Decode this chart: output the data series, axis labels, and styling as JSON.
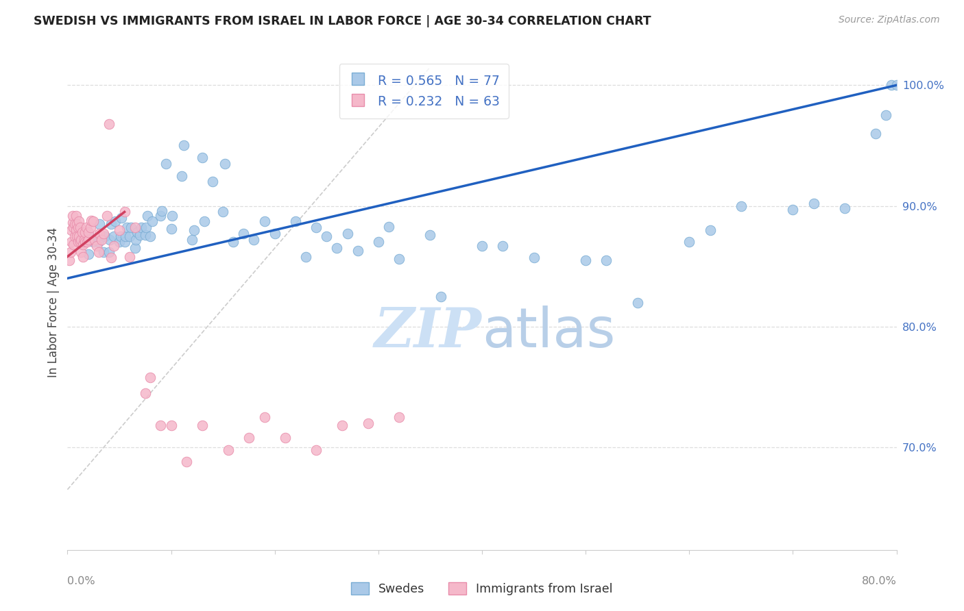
{
  "title": "SWEDISH VS IMMIGRANTS FROM ISRAEL IN LABOR FORCE | AGE 30-34 CORRELATION CHART",
  "source": "Source: ZipAtlas.com",
  "ylabel": "In Labor Force | Age 30-34",
  "ytick_labels": [
    "100.0%",
    "90.0%",
    "80.0%",
    "70.0%"
  ],
  "ytick_values": [
    1.0,
    0.9,
    0.8,
    0.7
  ],
  "xmin": 0.0,
  "xmax": 0.8,
  "ymin": 0.615,
  "ymax": 1.025,
  "blue_R": 0.565,
  "blue_N": 77,
  "pink_R": 0.232,
  "pink_N": 63,
  "blue_color": "#aac9e8",
  "blue_edge": "#7aadd4",
  "pink_color": "#f5b8ca",
  "pink_edge": "#e88caa",
  "trend_blue": "#2060c0",
  "trend_pink": "#d04060",
  "watermark_color": "#cce0f5",
  "legend_label_blue": "Swedes",
  "legend_label_pink": "Immigrants from Israel",
  "blue_x": [
    0.02,
    0.021,
    0.025,
    0.03,
    0.031,
    0.035,
    0.036,
    0.04,
    0.041,
    0.042,
    0.045,
    0.046,
    0.05,
    0.051,
    0.052,
    0.055,
    0.056,
    0.057,
    0.06,
    0.061,
    0.065,
    0.066,
    0.067,
    0.07,
    0.071,
    0.075,
    0.076,
    0.077,
    0.08,
    0.082,
    0.09,
    0.091,
    0.095,
    0.1,
    0.101,
    0.11,
    0.112,
    0.12,
    0.122,
    0.13,
    0.132,
    0.14,
    0.15,
    0.152,
    0.16,
    0.17,
    0.18,
    0.19,
    0.2,
    0.22,
    0.23,
    0.24,
    0.25,
    0.26,
    0.27,
    0.28,
    0.3,
    0.31,
    0.32,
    0.35,
    0.36,
    0.4,
    0.42,
    0.45,
    0.5,
    0.52,
    0.55,
    0.6,
    0.62,
    0.65,
    0.7,
    0.72,
    0.75,
    0.78,
    0.79,
    0.795,
    0.8
  ],
  "blue_y": [
    0.86,
    0.875,
    0.87,
    0.87,
    0.885,
    0.862,
    0.875,
    0.862,
    0.872,
    0.885,
    0.875,
    0.887,
    0.87,
    0.875,
    0.89,
    0.87,
    0.875,
    0.882,
    0.875,
    0.882,
    0.865,
    0.872,
    0.878,
    0.876,
    0.882,
    0.876,
    0.882,
    0.892,
    0.875,
    0.887,
    0.892,
    0.896,
    0.935,
    0.881,
    0.892,
    0.925,
    0.95,
    0.872,
    0.88,
    0.94,
    0.887,
    0.92,
    0.895,
    0.935,
    0.87,
    0.877,
    0.872,
    0.887,
    0.877,
    0.887,
    0.858,
    0.882,
    0.875,
    0.865,
    0.877,
    0.863,
    0.87,
    0.883,
    0.856,
    0.876,
    0.825,
    0.867,
    0.867,
    0.857,
    0.855,
    0.855,
    0.82,
    0.87,
    0.88,
    0.9,
    0.897,
    0.902,
    0.898,
    0.96,
    0.975,
    1.0,
    1.0
  ],
  "pink_x": [
    0.002,
    0.003,
    0.004,
    0.004,
    0.005,
    0.005,
    0.006,
    0.006,
    0.007,
    0.007,
    0.008,
    0.008,
    0.009,
    0.009,
    0.01,
    0.01,
    0.011,
    0.011,
    0.012,
    0.012,
    0.013,
    0.013,
    0.014,
    0.015,
    0.015,
    0.016,
    0.017,
    0.017,
    0.018,
    0.019,
    0.02,
    0.02,
    0.022,
    0.023,
    0.025,
    0.026,
    0.028,
    0.03,
    0.031,
    0.033,
    0.035,
    0.038,
    0.04,
    0.042,
    0.045,
    0.05,
    0.055,
    0.06,
    0.065,
    0.075,
    0.08,
    0.09,
    0.1,
    0.115,
    0.13,
    0.155,
    0.175,
    0.19,
    0.21,
    0.24,
    0.265,
    0.29,
    0.32
  ],
  "pink_y": [
    0.855,
    0.862,
    0.87,
    0.88,
    0.886,
    0.892,
    0.882,
    0.868,
    0.875,
    0.885,
    0.88,
    0.892,
    0.875,
    0.885,
    0.87,
    0.882,
    0.875,
    0.887,
    0.87,
    0.882,
    0.862,
    0.872,
    0.878,
    0.858,
    0.868,
    0.872,
    0.87,
    0.878,
    0.882,
    0.87,
    0.872,
    0.878,
    0.882,
    0.888,
    0.887,
    0.872,
    0.867,
    0.862,
    0.877,
    0.872,
    0.877,
    0.892,
    0.968,
    0.857,
    0.867,
    0.88,
    0.895,
    0.858,
    0.882,
    0.745,
    0.758,
    0.718,
    0.718,
    0.688,
    0.718,
    0.698,
    0.708,
    0.725,
    0.708,
    0.698,
    0.718,
    0.72,
    0.725
  ],
  "ref_line_color": "#cccccc",
  "grid_color": "#dddddd",
  "spine_color": "#cccccc",
  "tick_color": "#888888",
  "title_color": "#222222",
  "ylabel_color": "#444444",
  "xtick_color": "#888888",
  "right_tick_color": "#4472c4"
}
